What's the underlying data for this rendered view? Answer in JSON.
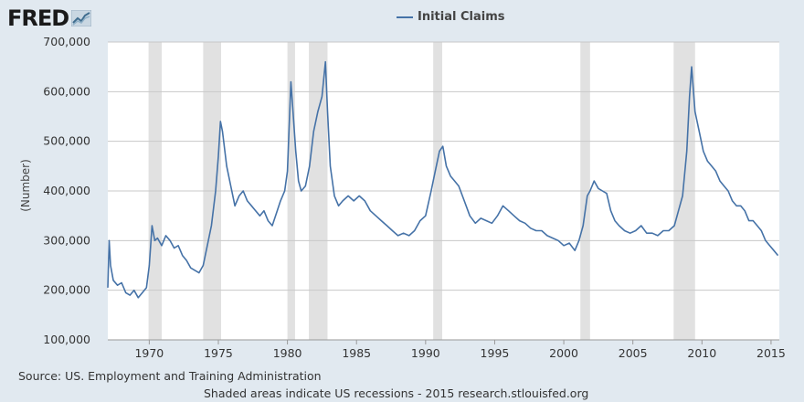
{
  "logo": {
    "text": "FRED"
  },
  "source": "Source: US. Employment and Training Administration",
  "note": "Shaded areas indicate US recessions - 2015 research.stlouisfed.org",
  "chart_data": {
    "type": "line",
    "title": "",
    "ylabel": "(Number)",
    "xlim": [
      1967.0,
      2015.6
    ],
    "ylim": [
      100000,
      700000
    ],
    "y_ticks": [
      {
        "value": 100000,
        "label": "100,000"
      },
      {
        "value": 200000,
        "label": "200,000"
      },
      {
        "value": 300000,
        "label": "300,000"
      },
      {
        "value": 400000,
        "label": "400,000"
      },
      {
        "value": 500000,
        "label": "500,000"
      },
      {
        "value": 600000,
        "label": "600,000"
      },
      {
        "value": 700000,
        "label": "700,000"
      }
    ],
    "x_ticks": [
      {
        "value": 1970,
        "label": "1970"
      },
      {
        "value": 1975,
        "label": "1975"
      },
      {
        "value": 1980,
        "label": "1980"
      },
      {
        "value": 1985,
        "label": "1985"
      },
      {
        "value": 1990,
        "label": "1990"
      },
      {
        "value": 1995,
        "label": "1995"
      },
      {
        "value": 2000,
        "label": "2000"
      },
      {
        "value": 2005,
        "label": "2005"
      },
      {
        "value": 2010,
        "label": "2010"
      },
      {
        "value": 2015,
        "label": "2015"
      }
    ],
    "recessions": [
      [
        1969.95,
        1970.9
      ],
      [
        1973.9,
        1975.2
      ],
      [
        1980.0,
        1980.55
      ],
      [
        1981.55,
        1982.9
      ],
      [
        1990.55,
        1991.2
      ],
      [
        2001.2,
        2001.9
      ],
      [
        2007.95,
        2009.5
      ]
    ],
    "grid": true,
    "legend_position": "top-center",
    "series": [
      {
        "name": "Initial Claims",
        "color": "#4572a7",
        "x": [
          1967.0,
          1967.1,
          1967.2,
          1967.4,
          1967.7,
          1968.0,
          1968.3,
          1968.6,
          1968.9,
          1969.2,
          1969.5,
          1969.8,
          1970.0,
          1970.2,
          1970.4,
          1970.6,
          1970.9,
          1971.2,
          1971.5,
          1971.8,
          1972.1,
          1972.4,
          1972.7,
          1973.0,
          1973.3,
          1973.6,
          1973.9,
          1974.2,
          1974.5,
          1974.8,
          1975.0,
          1975.15,
          1975.3,
          1975.6,
          1975.9,
          1976.2,
          1976.5,
          1976.8,
          1977.1,
          1977.4,
          1977.7,
          1978.0,
          1978.3,
          1978.6,
          1978.9,
          1979.2,
          1979.5,
          1979.8,
          1980.0,
          1980.25,
          1980.4,
          1980.6,
          1980.8,
          1981.0,
          1981.3,
          1981.6,
          1981.9,
          1982.2,
          1982.5,
          1982.75,
          1982.9,
          1983.1,
          1983.4,
          1983.7,
          1984.0,
          1984.4,
          1984.8,
          1985.2,
          1985.6,
          1986.0,
          1986.4,
          1986.8,
          1987.2,
          1987.6,
          1988.0,
          1988.4,
          1988.8,
          1989.2,
          1989.6,
          1990.0,
          1990.4,
          1990.7,
          1991.0,
          1991.25,
          1991.5,
          1991.8,
          1992.1,
          1992.4,
          1992.8,
          1993.2,
          1993.6,
          1994.0,
          1994.4,
          1994.8,
          1995.2,
          1995.6,
          1996.0,
          1996.4,
          1996.8,
          1997.2,
          1997.6,
          1998.0,
          1998.4,
          1998.8,
          1999.2,
          1999.6,
          2000.0,
          2000.4,
          2000.8,
          2001.1,
          2001.4,
          2001.7,
          2001.9,
          2002.2,
          2002.5,
          2002.8,
          2003.1,
          2003.4,
          2003.7,
          2004.0,
          2004.4,
          2004.8,
          2005.2,
          2005.6,
          2006.0,
          2006.4,
          2006.8,
          2007.2,
          2007.6,
          2008.0,
          2008.3,
          2008.6,
          2008.9,
          2009.1,
          2009.25,
          2009.5,
          2009.8,
          2010.1,
          2010.4,
          2010.7,
          2011.0,
          2011.3,
          2011.6,
          2011.9,
          2012.2,
          2012.5,
          2012.8,
          2013.1,
          2013.4,
          2013.7,
          2014.0,
          2014.3,
          2014.6,
          2014.9,
          2015.2,
          2015.5
        ],
        "values": [
          205000,
          300000,
          250000,
          220000,
          210000,
          215000,
          195000,
          190000,
          200000,
          185000,
          195000,
          205000,
          250000,
          330000,
          300000,
          305000,
          290000,
          310000,
          300000,
          285000,
          290000,
          270000,
          260000,
          245000,
          240000,
          235000,
          250000,
          290000,
          330000,
          400000,
          470000,
          540000,
          520000,
          450000,
          410000,
          370000,
          390000,
          400000,
          380000,
          370000,
          360000,
          350000,
          360000,
          340000,
          330000,
          355000,
          380000,
          400000,
          440000,
          620000,
          560000,
          480000,
          420000,
          400000,
          410000,
          450000,
          520000,
          560000,
          590000,
          660000,
          560000,
          450000,
          390000,
          370000,
          380000,
          390000,
          380000,
          390000,
          380000,
          360000,
          350000,
          340000,
          330000,
          320000,
          310000,
          315000,
          310000,
          320000,
          340000,
          350000,
          400000,
          440000,
          480000,
          490000,
          450000,
          430000,
          420000,
          410000,
          380000,
          350000,
          335000,
          345000,
          340000,
          335000,
          350000,
          370000,
          360000,
          350000,
          340000,
          335000,
          325000,
          320000,
          320000,
          310000,
          305000,
          300000,
          290000,
          295000,
          280000,
          300000,
          330000,
          390000,
          400000,
          420000,
          405000,
          400000,
          395000,
          360000,
          340000,
          330000,
          320000,
          315000,
          320000,
          330000,
          315000,
          315000,
          310000,
          320000,
          320000,
          330000,
          360000,
          390000,
          480000,
          590000,
          650000,
          560000,
          520000,
          480000,
          460000,
          450000,
          440000,
          420000,
          410000,
          400000,
          380000,
          370000,
          370000,
          360000,
          340000,
          340000,
          330000,
          320000,
          300000,
          290000,
          280000,
          270000
        ]
      }
    ]
  }
}
